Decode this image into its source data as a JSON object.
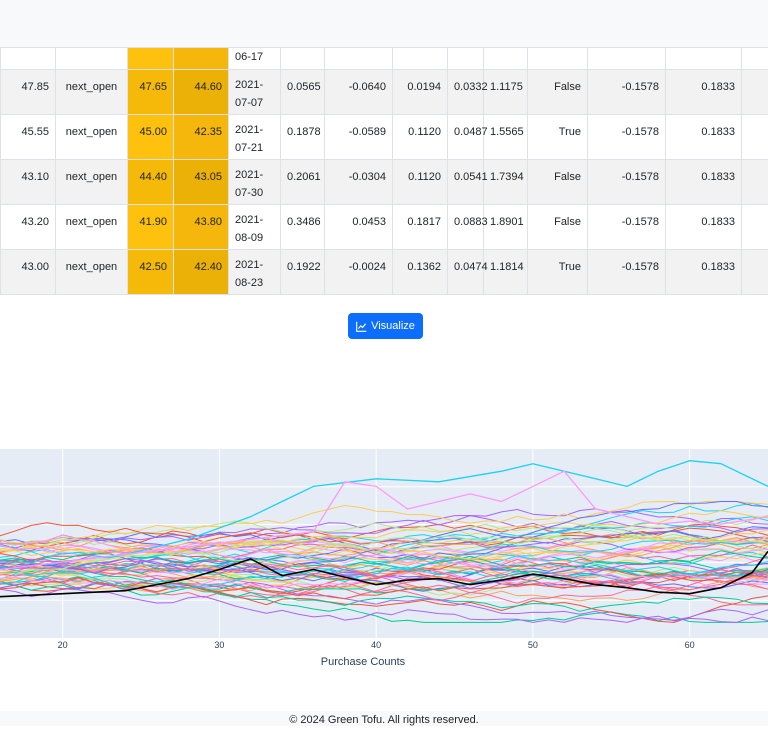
{
  "table": {
    "first_row": {
      "date": "06-17"
    },
    "rows": [
      {
        "price": "47.85",
        "method": "next_open",
        "v1": "47.65",
        "v2": "44.60",
        "date": "2021-07-07",
        "m1": "0.0565",
        "m2": "-0.0640",
        "m3": "0.0194",
        "m4": "0.0332",
        "m5": "1.1175",
        "flag": "False",
        "m6": "-0.1578",
        "m7": "0.1833"
      },
      {
        "price": "45.55",
        "method": "next_open",
        "v1": "45.00",
        "v2": "42.35",
        "date": "2021-07-21",
        "m1": "0.1878",
        "m2": "-0.0589",
        "m3": "0.1120",
        "m4": "0.0487",
        "m5": "1.5565",
        "flag": "True",
        "m6": "-0.1578",
        "m7": "0.1833"
      },
      {
        "price": "43.10",
        "method": "next_open",
        "v1": "44.40",
        "v2": "43.05",
        "date": "2021-07-30",
        "m1": "0.2061",
        "m2": "-0.0304",
        "m3": "0.1120",
        "m4": "0.0541",
        "m5": "1.7394",
        "flag": "False",
        "m6": "-0.1578",
        "m7": "0.1833"
      },
      {
        "price": "43.20",
        "method": "next_open",
        "v1": "41.90",
        "v2": "43.80",
        "date": "2021-08-09",
        "m1": "0.3486",
        "m2": "0.0453",
        "m3": "0.1817",
        "m4": "0.0883",
        "m5": "1.8901",
        "flag": "False",
        "m6": "-0.1578",
        "m7": "0.1833"
      },
      {
        "price": "43.00",
        "method": "next_open",
        "v1": "42.50",
        "v2": "42.40",
        "date": "2021-08-23",
        "m1": "0.1922",
        "m2": "-0.0024",
        "m3": "0.1362",
        "m4": "0.0474",
        "m5": "1.1814",
        "flag": "True",
        "m6": "-0.1578",
        "m7": "0.1833"
      }
    ]
  },
  "visualize_button": {
    "label": "Visualize",
    "icon": "line-chart-icon"
  },
  "chart_data": {
    "type": "line",
    "xlabel": "Purchase Counts",
    "ylabel": "",
    "x_ticks": [
      20,
      30,
      40,
      50,
      60
    ],
    "xlim": [
      16,
      65
    ],
    "ylim": [
      0,
      1
    ],
    "grid": true,
    "plot_bg": "#e5ecf6",
    "highlight_series": {
      "name": "",
      "color": "#000000",
      "x": [
        16,
        18,
        20,
        22,
        24,
        26,
        28,
        30,
        32,
        34,
        36,
        38,
        40,
        42,
        44,
        46,
        48,
        50,
        52,
        54,
        56,
        58,
        60,
        62,
        64,
        65
      ],
      "y": [
        0.22,
        0.23,
        0.24,
        0.25,
        0.26,
        0.3,
        0.34,
        0.4,
        0.47,
        0.36,
        0.4,
        0.35,
        0.3,
        0.33,
        0.34,
        0.3,
        0.33,
        0.37,
        0.34,
        0.3,
        0.28,
        0.25,
        0.24,
        0.28,
        0.38,
        0.52
      ]
    },
    "background_series_count": 60,
    "background_colors": [
      "#636efa",
      "#ef553b",
      "#00cc96",
      "#ab63fa",
      "#ffa15a",
      "#19d3f3",
      "#ff6692",
      "#b6e880",
      "#ff97ff",
      "#fecb52"
    ],
    "notable_series": [
      {
        "color": "#19d3f3",
        "x": [
          16,
          20,
          24,
          28,
          32,
          34,
          36,
          40,
          44,
          48,
          50,
          52,
          54,
          56,
          58,
          60,
          62,
          65
        ],
        "y": [
          0.4,
          0.45,
          0.5,
          0.6,
          0.75,
          0.85,
          0.95,
          1.0,
          0.98,
          1.05,
          1.1,
          1.05,
          1.0,
          0.95,
          1.05,
          1.12,
          1.1,
          0.95
        ]
      },
      {
        "color": "#ff97ff",
        "x": [
          16,
          20,
          24,
          28,
          32,
          36,
          38,
          40,
          42,
          44,
          46,
          48,
          50,
          52,
          54,
          56,
          58,
          60,
          62,
          65
        ],
        "y": [
          0.4,
          0.45,
          0.5,
          0.55,
          0.6,
          0.65,
          0.98,
          0.95,
          0.8,
          0.85,
          0.9,
          0.85,
          0.95,
          1.05,
          0.8,
          0.75,
          0.7,
          0.72,
          0.7,
          0.75
        ]
      }
    ]
  },
  "footer": {
    "text": "© 2024 Green Tofu. All rights reserved."
  }
}
